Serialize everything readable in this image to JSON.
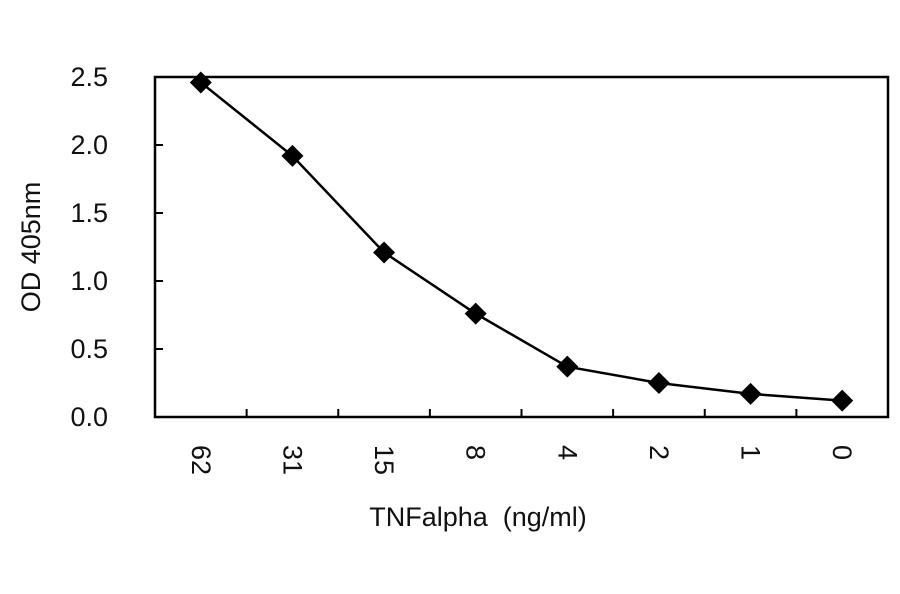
{
  "chart_data": {
    "type": "line",
    "title": "",
    "xlabel": "TNFalpha  (ng/ml)",
    "ylabel": "OD 405nm",
    "categories": [
      "62",
      "31",
      "15",
      "8",
      "4",
      "2",
      "1",
      "0"
    ],
    "series": [
      {
        "values": [
          2.46,
          1.92,
          1.21,
          0.76,
          0.37,
          0.25,
          0.17,
          0.12
        ],
        "marker": "diamond",
        "color": "#000000"
      }
    ],
    "ylim": [
      0,
      2.5
    ],
    "yticks": [
      "0.0",
      "0.5",
      "1.0",
      "1.5",
      "2.0",
      "2.5"
    ],
    "grid": false,
    "legend": "none"
  }
}
